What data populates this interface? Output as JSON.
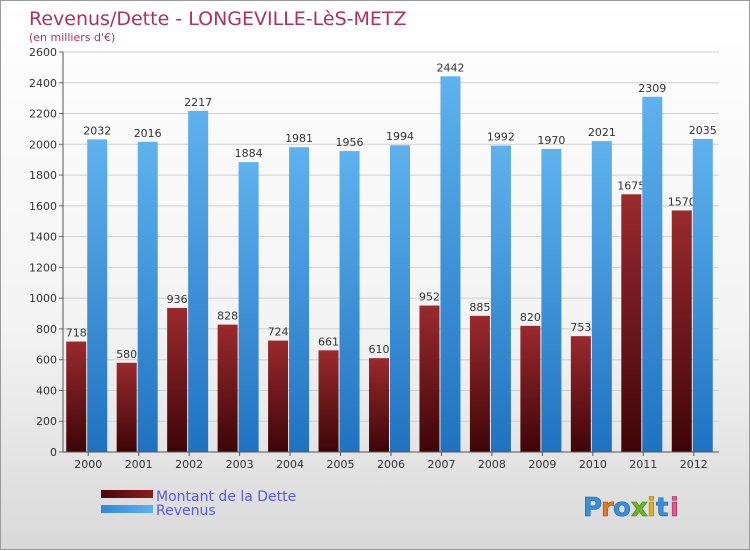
{
  "chart_data": {
    "type": "bar",
    "title": "Revenus/Dette - LONGEVILLE-LèS-METZ",
    "subtitle": "(en milliers d'€)",
    "categories": [
      "2000",
      "2001",
      "2002",
      "2003",
      "2004",
      "2005",
      "2006",
      "2007",
      "2008",
      "2009",
      "2010",
      "2011",
      "2012"
    ],
    "series": [
      {
        "name": "Montant de la Dette",
        "values": [
          718,
          580,
          936,
          828,
          724,
          661,
          610,
          952,
          885,
          820,
          753,
          1675,
          1570
        ]
      },
      {
        "name": "Revenus",
        "values": [
          2032,
          2016,
          2217,
          1884,
          1981,
          1956,
          1994,
          2442,
          1992,
          1970,
          2021,
          2309,
          2035
        ]
      }
    ],
    "y_ticks": [
      "0",
      "200",
      "400",
      "600",
      "800",
      "1000",
      "1200",
      "1400",
      "1600",
      "1800",
      "2000",
      "2200",
      "2400",
      "2600"
    ],
    "ylim": [
      0,
      2600
    ],
    "grid": true,
    "legend_position": "bottom-left"
  },
  "colors": {
    "debt": "#7a1418",
    "debt_dark": "#4a070a",
    "revenue": "#4aa3e6",
    "revenue_dark": "#1c78c8",
    "title": "#b03060",
    "legend_text": "#5a5ae0"
  },
  "logo": {
    "text": "Proxiti"
  }
}
